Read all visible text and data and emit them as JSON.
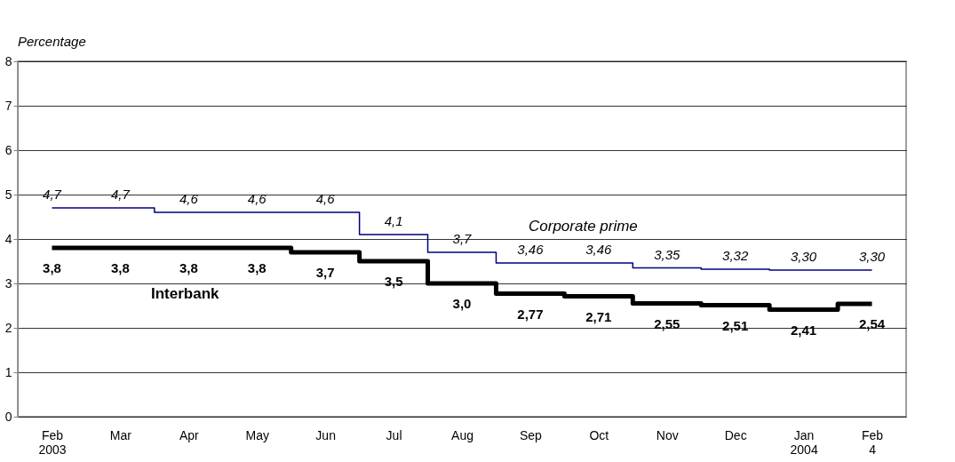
{
  "chart_data": {
    "type": "step",
    "ylabel": "Percentage",
    "categories": [
      "Feb 2003",
      "Mar",
      "Apr",
      "May",
      "Jun",
      "Jul",
      "Aug",
      "Sep",
      "Oct",
      "Nov",
      "Dec",
      "Jan 2004",
      "Feb 4"
    ],
    "series": [
      {
        "name": "Corporate prime",
        "color": "#000080",
        "values": [
          4.7,
          4.7,
          4.6,
          4.6,
          4.6,
          4.1,
          3.7,
          3.46,
          3.46,
          3.35,
          3.32,
          3.3,
          3.3
        ],
        "value_labels": [
          "4,7",
          "4,7",
          "4,6",
          "4,6",
          "4,6",
          "4,1",
          "3,7",
          "3,46",
          "3,46",
          "3,35",
          "3,32",
          "3,30",
          "3,30"
        ],
        "line_style": "solid"
      },
      {
        "name": "Interbank",
        "color": "#000000",
        "values": [
          3.8,
          3.8,
          3.8,
          3.8,
          3.7,
          3.5,
          3.0,
          2.77,
          2.71,
          2.55,
          2.51,
          2.41,
          2.54
        ],
        "value_labels": [
          "3,8",
          "3,8",
          "3,8",
          "3,8",
          "3,7",
          "3,5",
          "3,0",
          "2,77",
          "2,71",
          "2,55",
          "2,51",
          "2,41",
          "2,54"
        ],
        "line_style": "solid"
      }
    ],
    "ylim": [
      0,
      8
    ],
    "yticks": [
      0,
      1,
      2,
      3,
      4,
      5,
      6,
      7,
      8
    ],
    "grid": "y",
    "marker": "none"
  }
}
